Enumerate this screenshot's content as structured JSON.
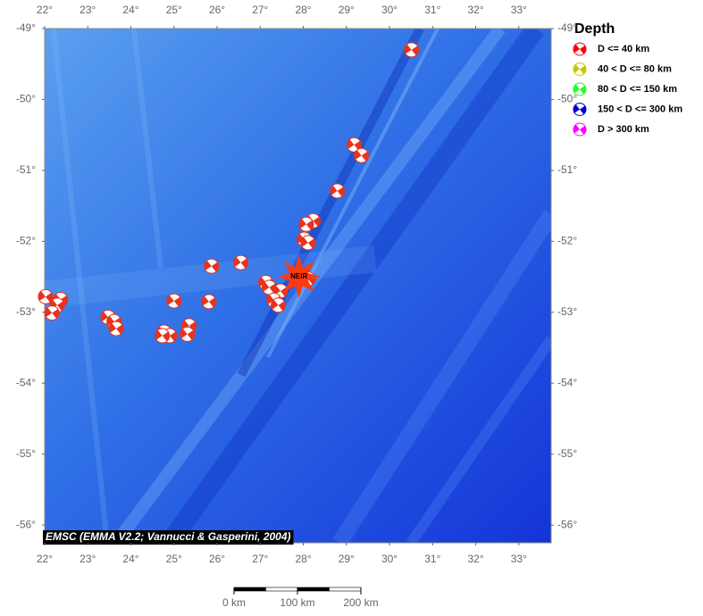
{
  "map": {
    "lonlim": [
      22,
      33.75
    ],
    "latlim": [
      -56.25,
      -49
    ],
    "lon_ticks": [
      {
        "value": 22,
        "label": "22°"
      },
      {
        "value": 23,
        "label": "23°"
      },
      {
        "value": 24,
        "label": "24°"
      },
      {
        "value": 25,
        "label": "25°"
      },
      {
        "value": 26,
        "label": "26°"
      },
      {
        "value": 27,
        "label": "27°"
      },
      {
        "value": 28,
        "label": "28°"
      },
      {
        "value": 29,
        "label": "29°"
      },
      {
        "value": 30,
        "label": "30°"
      },
      {
        "value": 31,
        "label": "31°"
      },
      {
        "value": 32,
        "label": "32°"
      },
      {
        "value": 33,
        "label": "33°"
      }
    ],
    "lat_ticks": [
      {
        "value": -49,
        "label": "-49°"
      },
      {
        "value": -50,
        "label": "-50°"
      },
      {
        "value": -51,
        "label": "-51°"
      },
      {
        "value": -52,
        "label": "-52°"
      },
      {
        "value": -53,
        "label": "-53°"
      },
      {
        "value": -54,
        "label": "-54°"
      },
      {
        "value": -55,
        "label": "-55°"
      },
      {
        "value": -56,
        "label": "-56°"
      }
    ],
    "event_color": "#e8321e",
    "events": [
      {
        "lon": 30.51,
        "lat": -49.3
      },
      {
        "lon": 29.18,
        "lat": -50.64
      },
      {
        "lon": 29.35,
        "lat": -50.79
      },
      {
        "lon": 28.79,
        "lat": -51.29
      },
      {
        "lon": 28.23,
        "lat": -51.71
      },
      {
        "lon": 28.07,
        "lat": -51.76
      },
      {
        "lon": 28.02,
        "lat": -51.97
      },
      {
        "lon": 28.11,
        "lat": -52.02
      },
      {
        "lon": 25.87,
        "lat": -52.35
      },
      {
        "lon": 26.55,
        "lat": -52.3
      },
      {
        "lon": 28.11,
        "lat": -52.53
      },
      {
        "lon": 27.13,
        "lat": -52.58
      },
      {
        "lon": 27.21,
        "lat": -52.65
      },
      {
        "lon": 27.47,
        "lat": -52.7
      },
      {
        "lon": 27.32,
        "lat": -52.83
      },
      {
        "lon": 27.42,
        "lat": -52.9
      },
      {
        "lon": 25.0,
        "lat": -52.84
      },
      {
        "lon": 25.81,
        "lat": -52.85
      },
      {
        "lon": 22.02,
        "lat": -52.78
      },
      {
        "lon": 22.37,
        "lat": -52.82
      },
      {
        "lon": 22.29,
        "lat": -52.9
      },
      {
        "lon": 22.17,
        "lat": -53.01
      },
      {
        "lon": 23.47,
        "lat": -53.07
      },
      {
        "lon": 23.61,
        "lat": -53.13
      },
      {
        "lon": 23.66,
        "lat": -53.23
      },
      {
        "lon": 25.35,
        "lat": -53.19
      },
      {
        "lon": 25.31,
        "lat": -53.31
      },
      {
        "lon": 24.77,
        "lat": -53.28
      },
      {
        "lon": 24.9,
        "lat": -53.33
      },
      {
        "lon": 24.73,
        "lat": -53.33
      }
    ],
    "station": {
      "label": "NEIR",
      "lon": 27.9,
      "lat": -52.5,
      "color": "#ff3a10"
    },
    "credit": "EMSC (EMMA V2.2; Vannucci & Gasperini, 2004)",
    "legend": {
      "title": "Depth",
      "items": [
        {
          "label": "D <= 40 km",
          "color": "#ff0000"
        },
        {
          "label": "40 < D <= 80 km",
          "color": "#c8c800"
        },
        {
          "label": "80 < D <= 150 km",
          "color": "#22ff22"
        },
        {
          "label": "150 < D <= 300 km",
          "color": "#0000cc"
        },
        {
          "label": "D > 300 km",
          "color": "#ff00ff"
        }
      ]
    },
    "scale_bar": {
      "labels": [
        "0 km",
        "100 km",
        "200 km"
      ]
    }
  }
}
